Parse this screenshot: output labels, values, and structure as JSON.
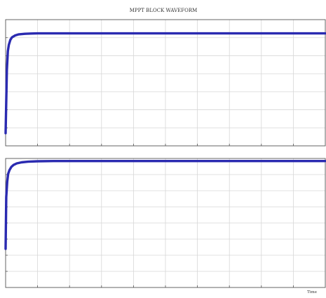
{
  "title": "MPPT BLOCK WAVEFORM",
  "colors": {
    "trace": "#2a2ab0",
    "grid": "#d7d7d7",
    "axis": "#555555",
    "background": "#ffffff"
  },
  "chart_data": [
    {
      "type": "line",
      "title": "MPPT BLOCK WAVEFORM",
      "xlabel": "",
      "ylabel": "",
      "grid": true,
      "series": [
        {
          "x": [
            0,
            0.02,
            0.04,
            0.07,
            0.1,
            0.15,
            0.2,
            0.3,
            0.4,
            0.6,
            0.8,
            1.0,
            1.5,
            2,
            3,
            4,
            5,
            6,
            7,
            8,
            9,
            10
          ],
          "y": [
            10,
            35,
            60,
            75,
            80,
            84,
            86,
            87.5,
            88.3,
            88.8,
            89,
            89.1,
            89.1,
            89.1,
            89.1,
            89.1,
            89.1,
            89.1,
            89.1,
            89.1,
            89.1,
            89.1
          ]
        }
      ]
    },
    {
      "type": "line",
      "xlabel": "Time",
      "ylabel": "",
      "grid": true,
      "series": [
        {
          "x": [
            0,
            0.02,
            0.05,
            0.08,
            0.12,
            0.18,
            0.25,
            0.35,
            0.5,
            0.7,
            1.0,
            1.5,
            2,
            3,
            4,
            5,
            6,
            7,
            8,
            9,
            10
          ],
          "y": [
            30,
            70,
            82,
            88,
            91,
            93.5,
            95,
            96.2,
            97,
            97.5,
            97.8,
            98,
            98,
            98,
            98,
            98,
            98,
            98,
            98,
            98,
            98
          ]
        }
      ]
    }
  ]
}
